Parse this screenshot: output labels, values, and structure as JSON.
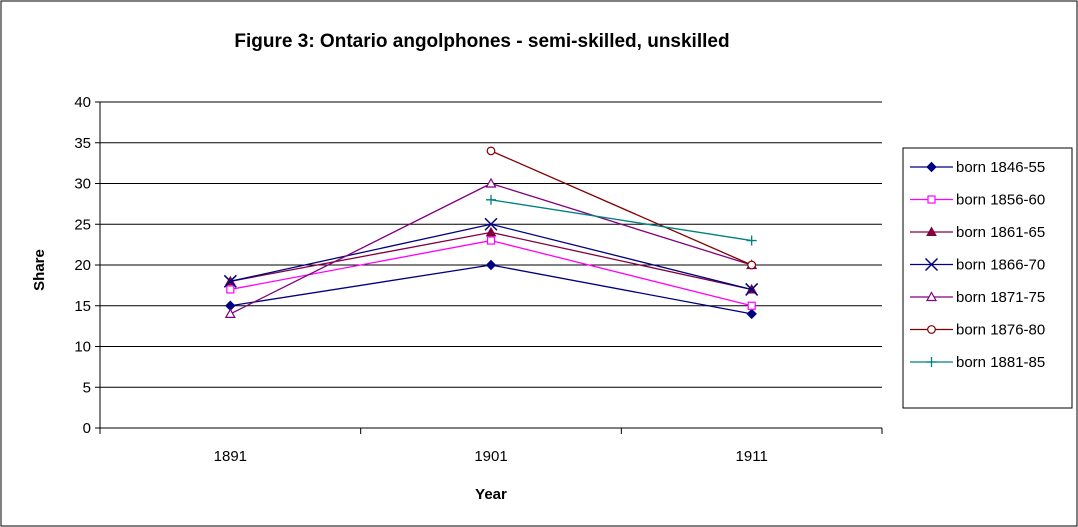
{
  "chart_data": {
    "type": "line",
    "title": "Figure 3: Ontario angolphones - semi-skilled, unskilled",
    "xlabel": "Year",
    "ylabel": "Share",
    "categories": [
      "1891",
      "1901",
      "1911"
    ],
    "ylim": [
      0,
      40
    ],
    "yticks": [
      0,
      5,
      10,
      15,
      20,
      25,
      30,
      35,
      40
    ],
    "grid": true,
    "legend_position": "right",
    "series": [
      {
        "name": "born 1846-55",
        "values": [
          15,
          20,
          14
        ],
        "color": "#000080",
        "marker": "diamond-filled"
      },
      {
        "name": "born 1856-60",
        "values": [
          17,
          23,
          15
        ],
        "color": "#ff00ff",
        "marker": "square-open"
      },
      {
        "name": "born 1861-65",
        "values": [
          18,
          24,
          17
        ],
        "color": "#800040",
        "marker": "triangle-filled"
      },
      {
        "name": "born 1866-70",
        "values": [
          18,
          25,
          17
        ],
        "color": "#000080",
        "marker": "x"
      },
      {
        "name": "born 1871-75",
        "values": [
          14,
          30,
          20
        ],
        "color": "#800080",
        "marker": "triangle-open"
      },
      {
        "name": "born 1876-80",
        "values": [
          null,
          34,
          20
        ],
        "color": "#800000",
        "marker": "circle-open"
      },
      {
        "name": "born 1881-85",
        "values": [
          null,
          28,
          23
        ],
        "color": "#008080",
        "marker": "plus"
      }
    ]
  }
}
